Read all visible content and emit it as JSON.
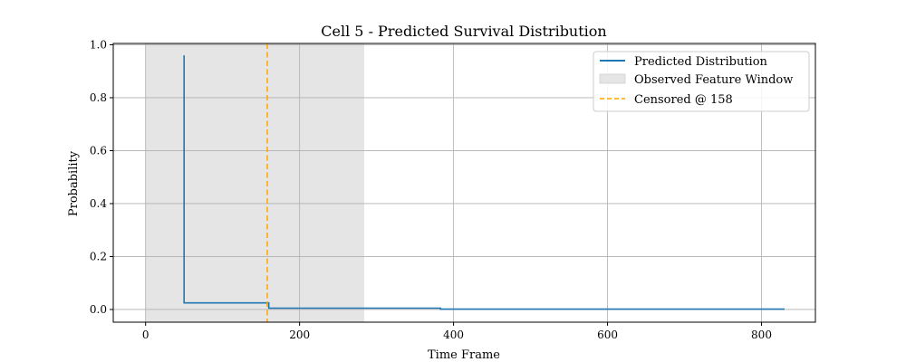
{
  "chart_data": {
    "type": "line",
    "title": "Cell 5 - Predicted Survival Distribution",
    "xlabel": "Time Frame",
    "ylabel": "Probability",
    "xlim": [
      -42,
      870
    ],
    "ylim": [
      -0.048,
      1.005
    ],
    "xticks": [
      0,
      200,
      400,
      600,
      800
    ],
    "yticks": [
      0.0,
      0.2,
      0.4,
      0.6,
      0.8,
      1.0
    ],
    "xtick_labels": [
      "0",
      "200",
      "400",
      "600",
      "800"
    ],
    "ytick_labels": [
      "0.0",
      "0.2",
      "0.4",
      "0.6",
      "0.8",
      "1.0"
    ],
    "grid": true,
    "legend_position": "upper right",
    "series": [
      {
        "name": "Predicted Distribution",
        "color": "#1f77b4",
        "style": "step",
        "x": [
          50,
          50,
          160,
          160,
          383,
          383,
          830
        ],
        "y": [
          0.96,
          0.025,
          0.025,
          0.005,
          0.005,
          0.0015,
          0.0015
        ]
      }
    ],
    "shaded_region": {
      "name": "Observed Feature Window",
      "x_start": 0,
      "x_end": 284,
      "color": "#e5e5e5"
    },
    "vertical_line": {
      "name": "Censored @ 158",
      "x": 158,
      "color": "#ffa500"
    }
  }
}
